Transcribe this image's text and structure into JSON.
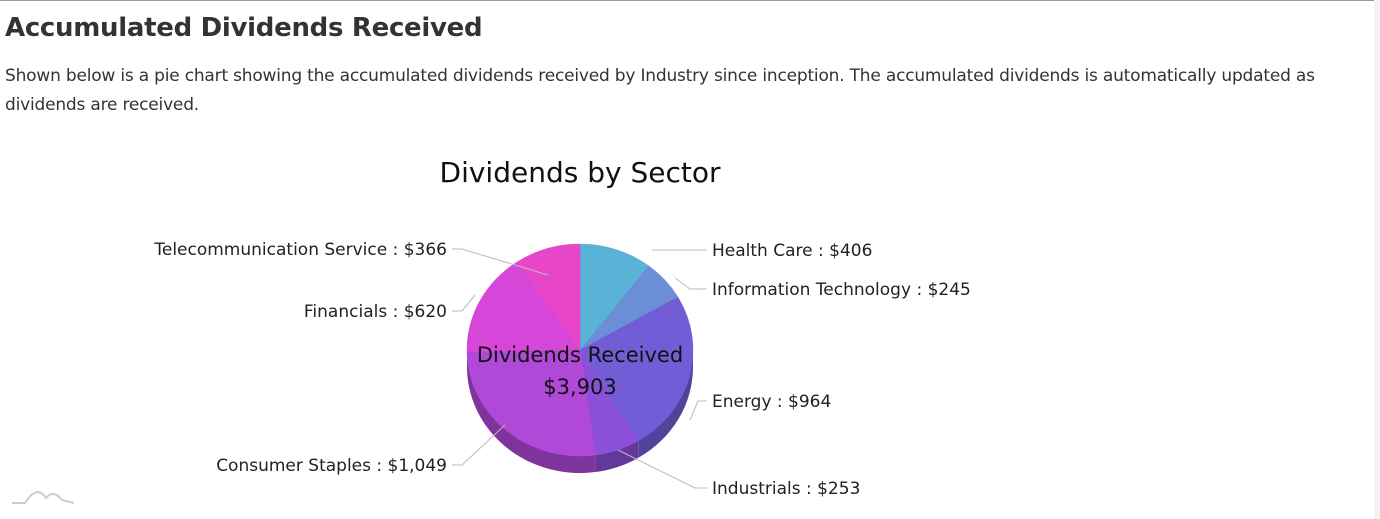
{
  "section": {
    "title": "Accumulated Dividends Received",
    "description": "Shown below is a pie chart showing the accumulated dividends received by Industry since inception. The accumulated dividends is automatically updated as dividends are received."
  },
  "chart_data": {
    "type": "pie",
    "title": "Dividends by Sector",
    "center_label": "Dividends Received",
    "center_value": "$3,903",
    "style": "3d",
    "slices": [
      {
        "label": "Health Care",
        "value": 406,
        "display": "Health Care : $406",
        "color": "#59b3d6"
      },
      {
        "label": "Information Technology",
        "value": 245,
        "display": "Information Technology : $245",
        "color": "#6b8ed6"
      },
      {
        "label": "Energy",
        "value": 964,
        "display": "Energy : $964",
        "color": "#735dd6"
      },
      {
        "label": "Industrials",
        "value": 253,
        "display": "Industrials : $253",
        "color": "#8c4fd8"
      },
      {
        "label": "Consumer Staples",
        "value": 1049,
        "display": "Consumer Staples : $1,049",
        "color": "#b049d8"
      },
      {
        "label": "Financials",
        "value": 620,
        "display": "Financials : $620",
        "color": "#d646d8"
      },
      {
        "label": "Telecommunication Service",
        "value": 366,
        "display": "Telecommunication Service : $366",
        "color": "#e846c8"
      }
    ]
  }
}
